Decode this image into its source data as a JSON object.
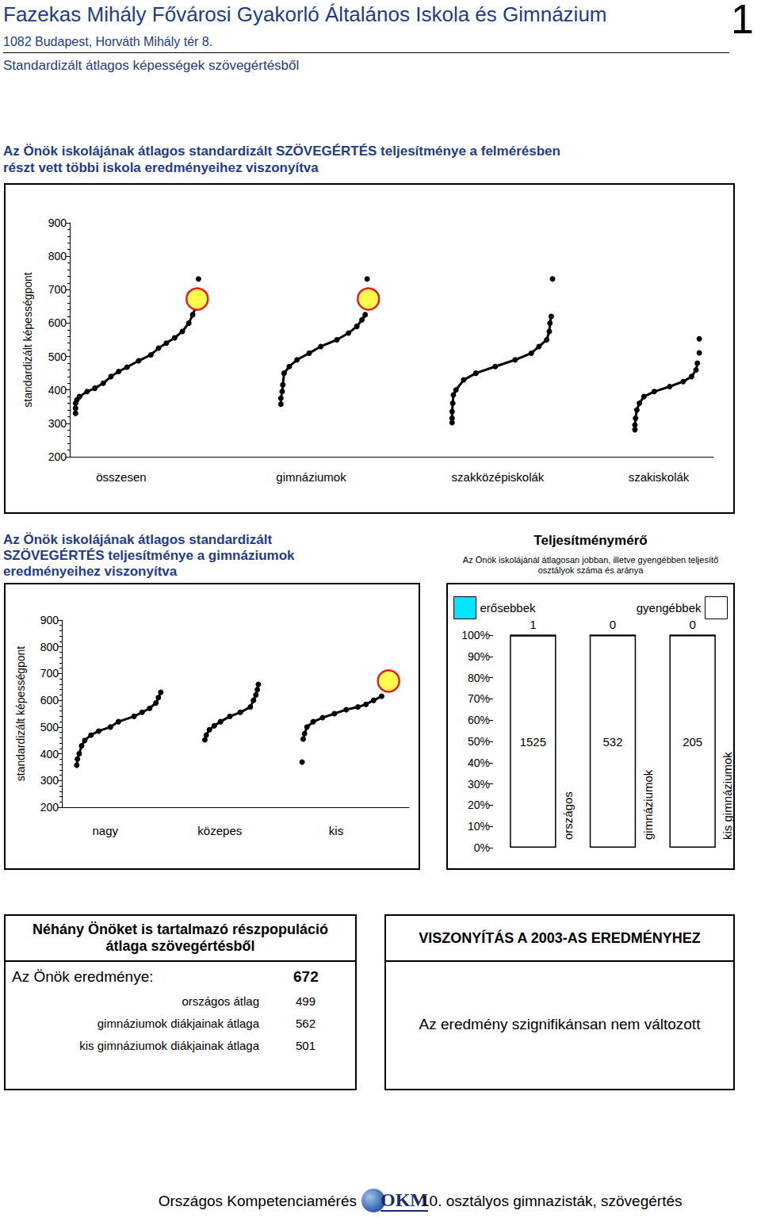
{
  "header": {
    "school": "Fazekas Mihály Fővárosi Gyakorló Általános Iskola és Gimnázium",
    "page": "1",
    "address": "1082 Budapest, Horváth Mihály tér 8.",
    "subtitle": "Standardizált átlagos képességek szövegértésből"
  },
  "chart_data": [
    {
      "type": "scatter",
      "title": "Az Önök iskolájának átlagos standardizált SZÖVEGÉRTÉS teljesítménye a felmérésben részt vett többi iskola eredményeihez viszonyítva",
      "ylabel": "standardizált képességpont",
      "xlim": [
        0,
        100
      ],
      "xticks": [
        {
          "value": 8,
          "label": "összesen"
        },
        {
          "value": 37.5,
          "label": "gimnáziumok"
        },
        {
          "value": 66.5,
          "label": "szakközépiskolák"
        },
        {
          "value": 91.5,
          "label": "szakiskolák"
        }
      ],
      "ylim": [
        200,
        900
      ],
      "yticks": [
        200,
        300,
        400,
        500,
        600,
        700,
        800,
        900
      ],
      "grid": false,
      "series": [
        {
          "type": "line",
          "marker": "dot",
          "color": "#000000",
          "x": [
            0.9,
            0.9,
            0.9,
            1.1,
            1.5,
            2.7,
            3.9,
            5.2,
            6.4,
            7.6,
            8.9,
            10.7,
            12.6,
            13.8,
            15.0,
            16.3,
            17.5,
            18.5,
            19.1,
            19.5
          ],
          "values": [
            330,
            345,
            360,
            370,
            380,
            395,
            405,
            420,
            440,
            455,
            468,
            487,
            505,
            525,
            540,
            556,
            575,
            600,
            625,
            645
          ]
        },
        {
          "type": "line",
          "marker": "dot",
          "color": "#000000",
          "x": [
            32.8,
            32.8,
            33.0,
            33.1,
            33.3,
            34.1,
            35.3,
            37.2,
            39.0,
            41.5,
            43.3,
            44.6,
            45.4,
            45.9
          ],
          "values": [
            357,
            375,
            395,
            415,
            450,
            470,
            490,
            510,
            530,
            550,
            570,
            590,
            610,
            625
          ]
        },
        {
          "type": "line",
          "marker": "dot",
          "color": "#000000",
          "x": [
            59.4,
            59.4,
            59.4,
            59.5,
            59.6,
            60.0,
            61.2,
            63.1,
            66.1,
            69.2,
            71.7,
            72.9,
            74.1,
            74.5,
            74.6,
            74.8
          ],
          "values": [
            302,
            315,
            335,
            360,
            385,
            400,
            430,
            450,
            470,
            490,
            510,
            530,
            550,
            575,
            600,
            620
          ]
        },
        {
          "type": "line",
          "marker": "dot",
          "color": "#000000",
          "x": [
            87.8,
            87.8,
            87.9,
            88.1,
            88.5,
            89.2,
            90.8,
            93.2,
            95.3,
            96.6,
            97.3,
            97.5
          ],
          "values": [
            281,
            295,
            315,
            340,
            360,
            380,
            395,
            410,
            425,
            440,
            460,
            480
          ]
        },
        {
          "type": "scatter",
          "marker": "dot",
          "color": "#000000",
          "x": [
            20.0,
            46.2,
            75.0,
            97.8,
            97.8
          ],
          "values": [
            732,
            732,
            732,
            511,
            553
          ]
        },
        {
          "type": "scatter",
          "marker": "circle",
          "color": "#ffff4d",
          "x": [
            19.8,
            46.4
          ],
          "values": [
            672,
            672
          ]
        }
      ]
    },
    {
      "type": "scatter",
      "title": "Az Önök iskolájának átlagos standardizált SZÖVEGÉRTÉS teljesítménye a gimnáziumok eredményeihez viszonyítva",
      "ylabel": "standardizált képességpont",
      "xlim": [
        0,
        100
      ],
      "xticks": [
        {
          "value": 12.5,
          "label": "nagy"
        },
        {
          "value": 45.5,
          "label": "közepes"
        },
        {
          "value": 79,
          "label": "kis"
        }
      ],
      "ylim": [
        200,
        900
      ],
      "yticks": [
        200,
        300,
        400,
        500,
        600,
        700,
        800,
        900
      ],
      "grid": false,
      "series": [
        {
          "type": "line",
          "marker": "dot",
          "color": "#000000",
          "x": [
            4.3,
            4.5,
            5.0,
            5.7,
            6.6,
            8.4,
            10.6,
            14.0,
            16.3,
            20.8,
            23.1,
            25.3,
            27.1,
            27.8,
            28.5
          ],
          "values": [
            357,
            380,
            400,
            430,
            450,
            470,
            485,
            500,
            520,
            540,
            555,
            570,
            590,
            610,
            630
          ]
        },
        {
          "type": "line",
          "marker": "dot",
          "color": "#000000",
          "x": [
            41.2,
            41.6,
            42.5,
            43.9,
            45.7,
            48.4,
            51.4,
            54.3,
            55.2,
            55.9,
            56.3,
            56.6
          ],
          "values": [
            452,
            470,
            490,
            505,
            520,
            540,
            555,
            575,
            600,
            620,
            640,
            660
          ]
        },
        {
          "type": "line",
          "marker": "dot",
          "color": "#000000",
          "x": [
            69.5,
            69.9,
            70.6,
            72.4,
            75.1,
            78.5,
            81.9,
            85.3,
            87.6,
            89.8,
            92.1
          ],
          "values": [
            455,
            475,
            500,
            520,
            535,
            550,
            565,
            575,
            585,
            600,
            615
          ]
        },
        {
          "type": "scatter",
          "marker": "dot",
          "color": "#000000",
          "x": [
            69.2
          ],
          "values": [
            369
          ]
        },
        {
          "type": "scatter",
          "marker": "circle",
          "color": "#ffff4d",
          "x": [
            94.1
          ],
          "values": [
            672
          ]
        }
      ]
    },
    {
      "type": "bar",
      "title": "Teljesítménymérő",
      "subtitle": "Az Önök iskolájánál átlagosan jobban, illetve gyengébben teljesítő osztályok száma és aránya",
      "stacked": true,
      "categories": [
        "országos",
        "gimnáziumok",
        "kis gimnáziumok"
      ],
      "ylim": [
        0,
        100
      ],
      "yticks": [
        {
          "value": 0,
          "label": "0%"
        },
        {
          "value": 10,
          "label": "10%"
        },
        {
          "value": 20,
          "label": "20%"
        },
        {
          "value": 30,
          "label": "30%"
        },
        {
          "value": 40,
          "label": "40%"
        },
        {
          "value": 50,
          "label": "50%"
        },
        {
          "value": 60,
          "label": "60%"
        },
        {
          "value": 70,
          "label": "70%"
        },
        {
          "value": 80,
          "label": "80%"
        },
        {
          "value": 90,
          "label": "90%"
        },
        {
          "value": 100,
          "label": "100%"
        }
      ],
      "grid": false,
      "series": [
        {
          "name": "erősebbek",
          "color": "#00e5ff",
          "values": [
            0.07,
            0,
            0
          ],
          "counts": [
            1,
            0,
            0
          ]
        },
        {
          "name": "gyengébbek",
          "color": "#ffffff",
          "values": [
            99.93,
            100,
            100
          ],
          "counts": [
            1525,
            532,
            205
          ]
        }
      ]
    }
  ],
  "summary": {
    "title": "Néhány Önöket is tartalmazó részpopuláció átlaga szövegértésből",
    "result_label": "Az Önök eredménye:",
    "result": 672,
    "rows": [
      {
        "label": "országos átlag",
        "value": 499
      },
      {
        "label": "gimnáziumok diákjainak átlaga",
        "value": 562
      },
      {
        "label": "kis gimnáziumok diákjainak átlaga",
        "value": 501
      }
    ]
  },
  "comparison": {
    "title": "VISZONYÍTÁS A 2003-AS EREDMÉNYHEZ",
    "text": "Az eredmény szignifikánsan nem változott"
  },
  "footer": {
    "left": "Országos Kompetenciamérés",
    "logo": "OKM",
    "right": "10. osztályos gimnazisták, szövegértés"
  }
}
